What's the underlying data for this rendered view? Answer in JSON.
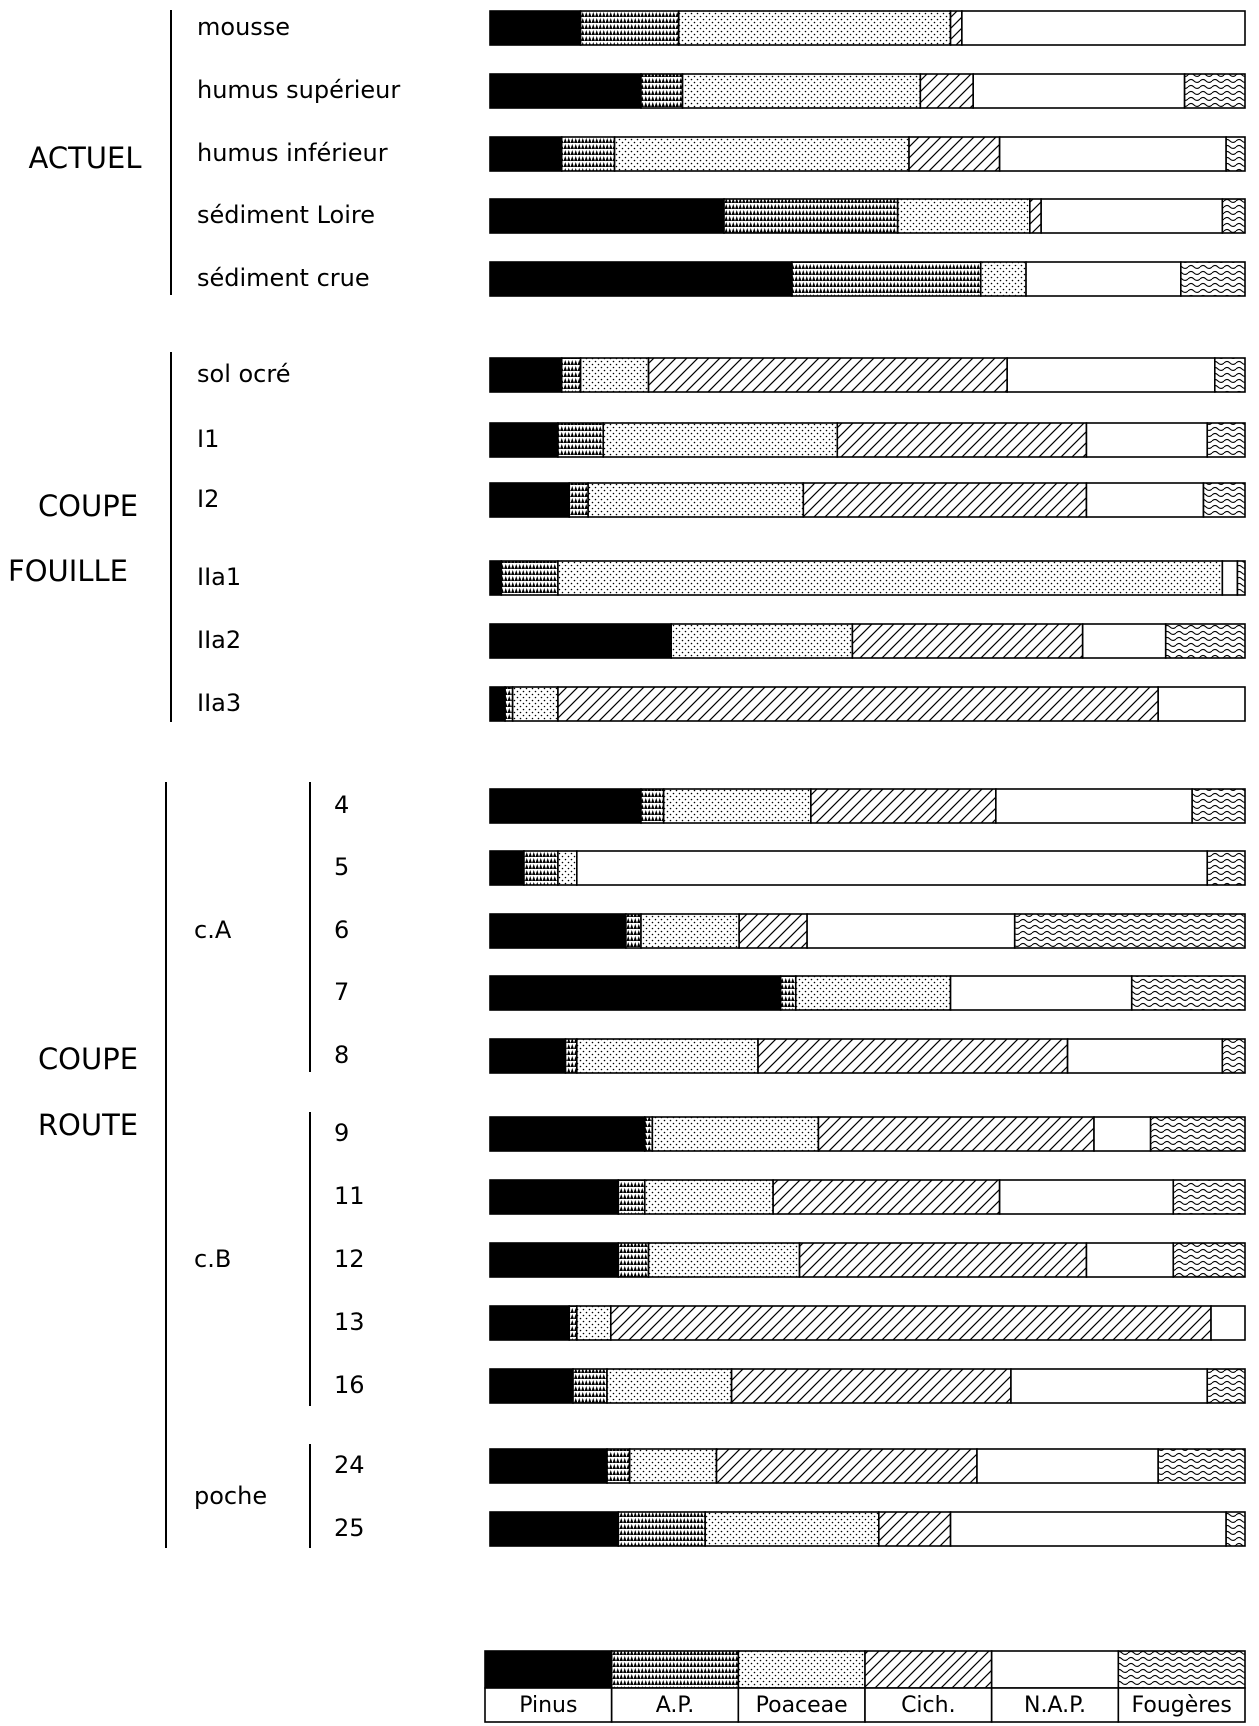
{
  "chart_data": {
    "type": "bar",
    "stacked": true,
    "orientation": "horizontal",
    "normalized_to": 100,
    "unit": "%",
    "legend_position": "bottom",
    "grid": false,
    "series": [
      {
        "name": "Pinus",
        "pattern": "solid-black"
      },
      {
        "name": "A.P.",
        "pattern": "dense-triangle-stipple"
      },
      {
        "name": "Poaceae",
        "pattern": "fine-dot-stipple"
      },
      {
        "name": "Cich.",
        "pattern": "diagonal-hatch"
      },
      {
        "name": "N.A.P.",
        "pattern": "blank"
      },
      {
        "name": "Fougères",
        "pattern": "wavy-lines"
      }
    ],
    "groups": [
      {
        "label_lines": [
          "ACTUEL"
        ],
        "rows": [
          {
            "label": "mousse",
            "values": [
              12,
              13,
              36,
              1.5,
              37.5,
              0
            ]
          },
          {
            "label": "humus supérieur",
            "values": [
              20,
              5.5,
              31.5,
              7,
              28,
              8
            ]
          },
          {
            "label": "humus inférieur",
            "values": [
              9.5,
              7,
              39,
              12,
              30,
              2.5
            ]
          },
          {
            "label": "sédiment Loire",
            "values": [
              31,
              23,
              17.5,
              1.5,
              24,
              3
            ]
          },
          {
            "label": "sédiment crue",
            "values": [
              40,
              25,
              6,
              0,
              20.5,
              8.5
            ]
          }
        ]
      },
      {
        "label_lines": [
          "COUPE",
          "FOUILLE"
        ],
        "rows": [
          {
            "label": "sol ocré",
            "values": [
              9.5,
              2.5,
              9,
              47.5,
              27.5,
              4
            ]
          },
          {
            "label": "I1",
            "values": [
              9,
              6,
              31,
              33,
              16,
              5
            ]
          },
          {
            "label": "I2",
            "values": [
              10.5,
              2.5,
              28.5,
              37.5,
              15.5,
              5.5
            ]
          },
          {
            "label": "IIa1",
            "values": [
              1.5,
              7.5,
              88,
              0,
              2,
              1
            ]
          },
          {
            "label": "IIa2",
            "values": [
              24,
              0,
              24,
              30.5,
              11,
              10.5
            ]
          },
          {
            "label": "IIa3",
            "values": [
              2,
              1,
              6,
              79.5,
              11.5,
              0
            ]
          }
        ]
      },
      {
        "label_lines": [
          "COUPE",
          "ROUTE"
        ],
        "subgroups": [
          {
            "label": "c.A",
            "rows": [
              {
                "label": "4",
                "values": [
                  20,
                  3,
                  19.5,
                  24.5,
                  26,
                  7
                ]
              },
              {
                "label": "5",
                "values": [
                  4.5,
                  4.5,
                  2.5,
                  0,
                  83.5,
                  5
                ]
              },
              {
                "label": "6",
                "values": [
                  18,
                  2,
                  13,
                  9,
                  27.5,
                  30.5
                ]
              },
              {
                "label": "7",
                "values": [
                  38.5,
                  2,
                  20.5,
                  0,
                  24,
                  15
                ]
              },
              {
                "label": "8",
                "values": [
                  10,
                  1.5,
                  24,
                  41,
                  20.5,
                  3
                ]
              }
            ]
          },
          {
            "label": "c.B",
            "rows": [
              {
                "label": "9",
                "values": [
                  20.5,
                  1,
                  22,
                  36.5,
                  7.5,
                  12.5
                ]
              },
              {
                "label": "11",
                "values": [
                  17,
                  3.5,
                  17,
                  30,
                  23,
                  9.5
                ]
              },
              {
                "label": "12",
                "values": [
                  17,
                  4,
                  20,
                  38,
                  11.5,
                  9.5
                ]
              },
              {
                "label": "13",
                "values": [
                  10.5,
                  1,
                  4.5,
                  79.5,
                  4.5,
                  0
                ]
              },
              {
                "label": "16",
                "values": [
                  11,
                  4.5,
                  16.5,
                  37,
                  26,
                  5
                ]
              }
            ]
          },
          {
            "label": "poche",
            "rows": [
              {
                "label": "24",
                "values": [
                  15.5,
                  3,
                  11.5,
                  34.5,
                  24,
                  11.5
                ]
              },
              {
                "label": "25",
                "values": [
                  17,
                  11.5,
                  23,
                  9.5,
                  36.5,
                  2.5
                ]
              }
            ]
          }
        ]
      }
    ]
  }
}
